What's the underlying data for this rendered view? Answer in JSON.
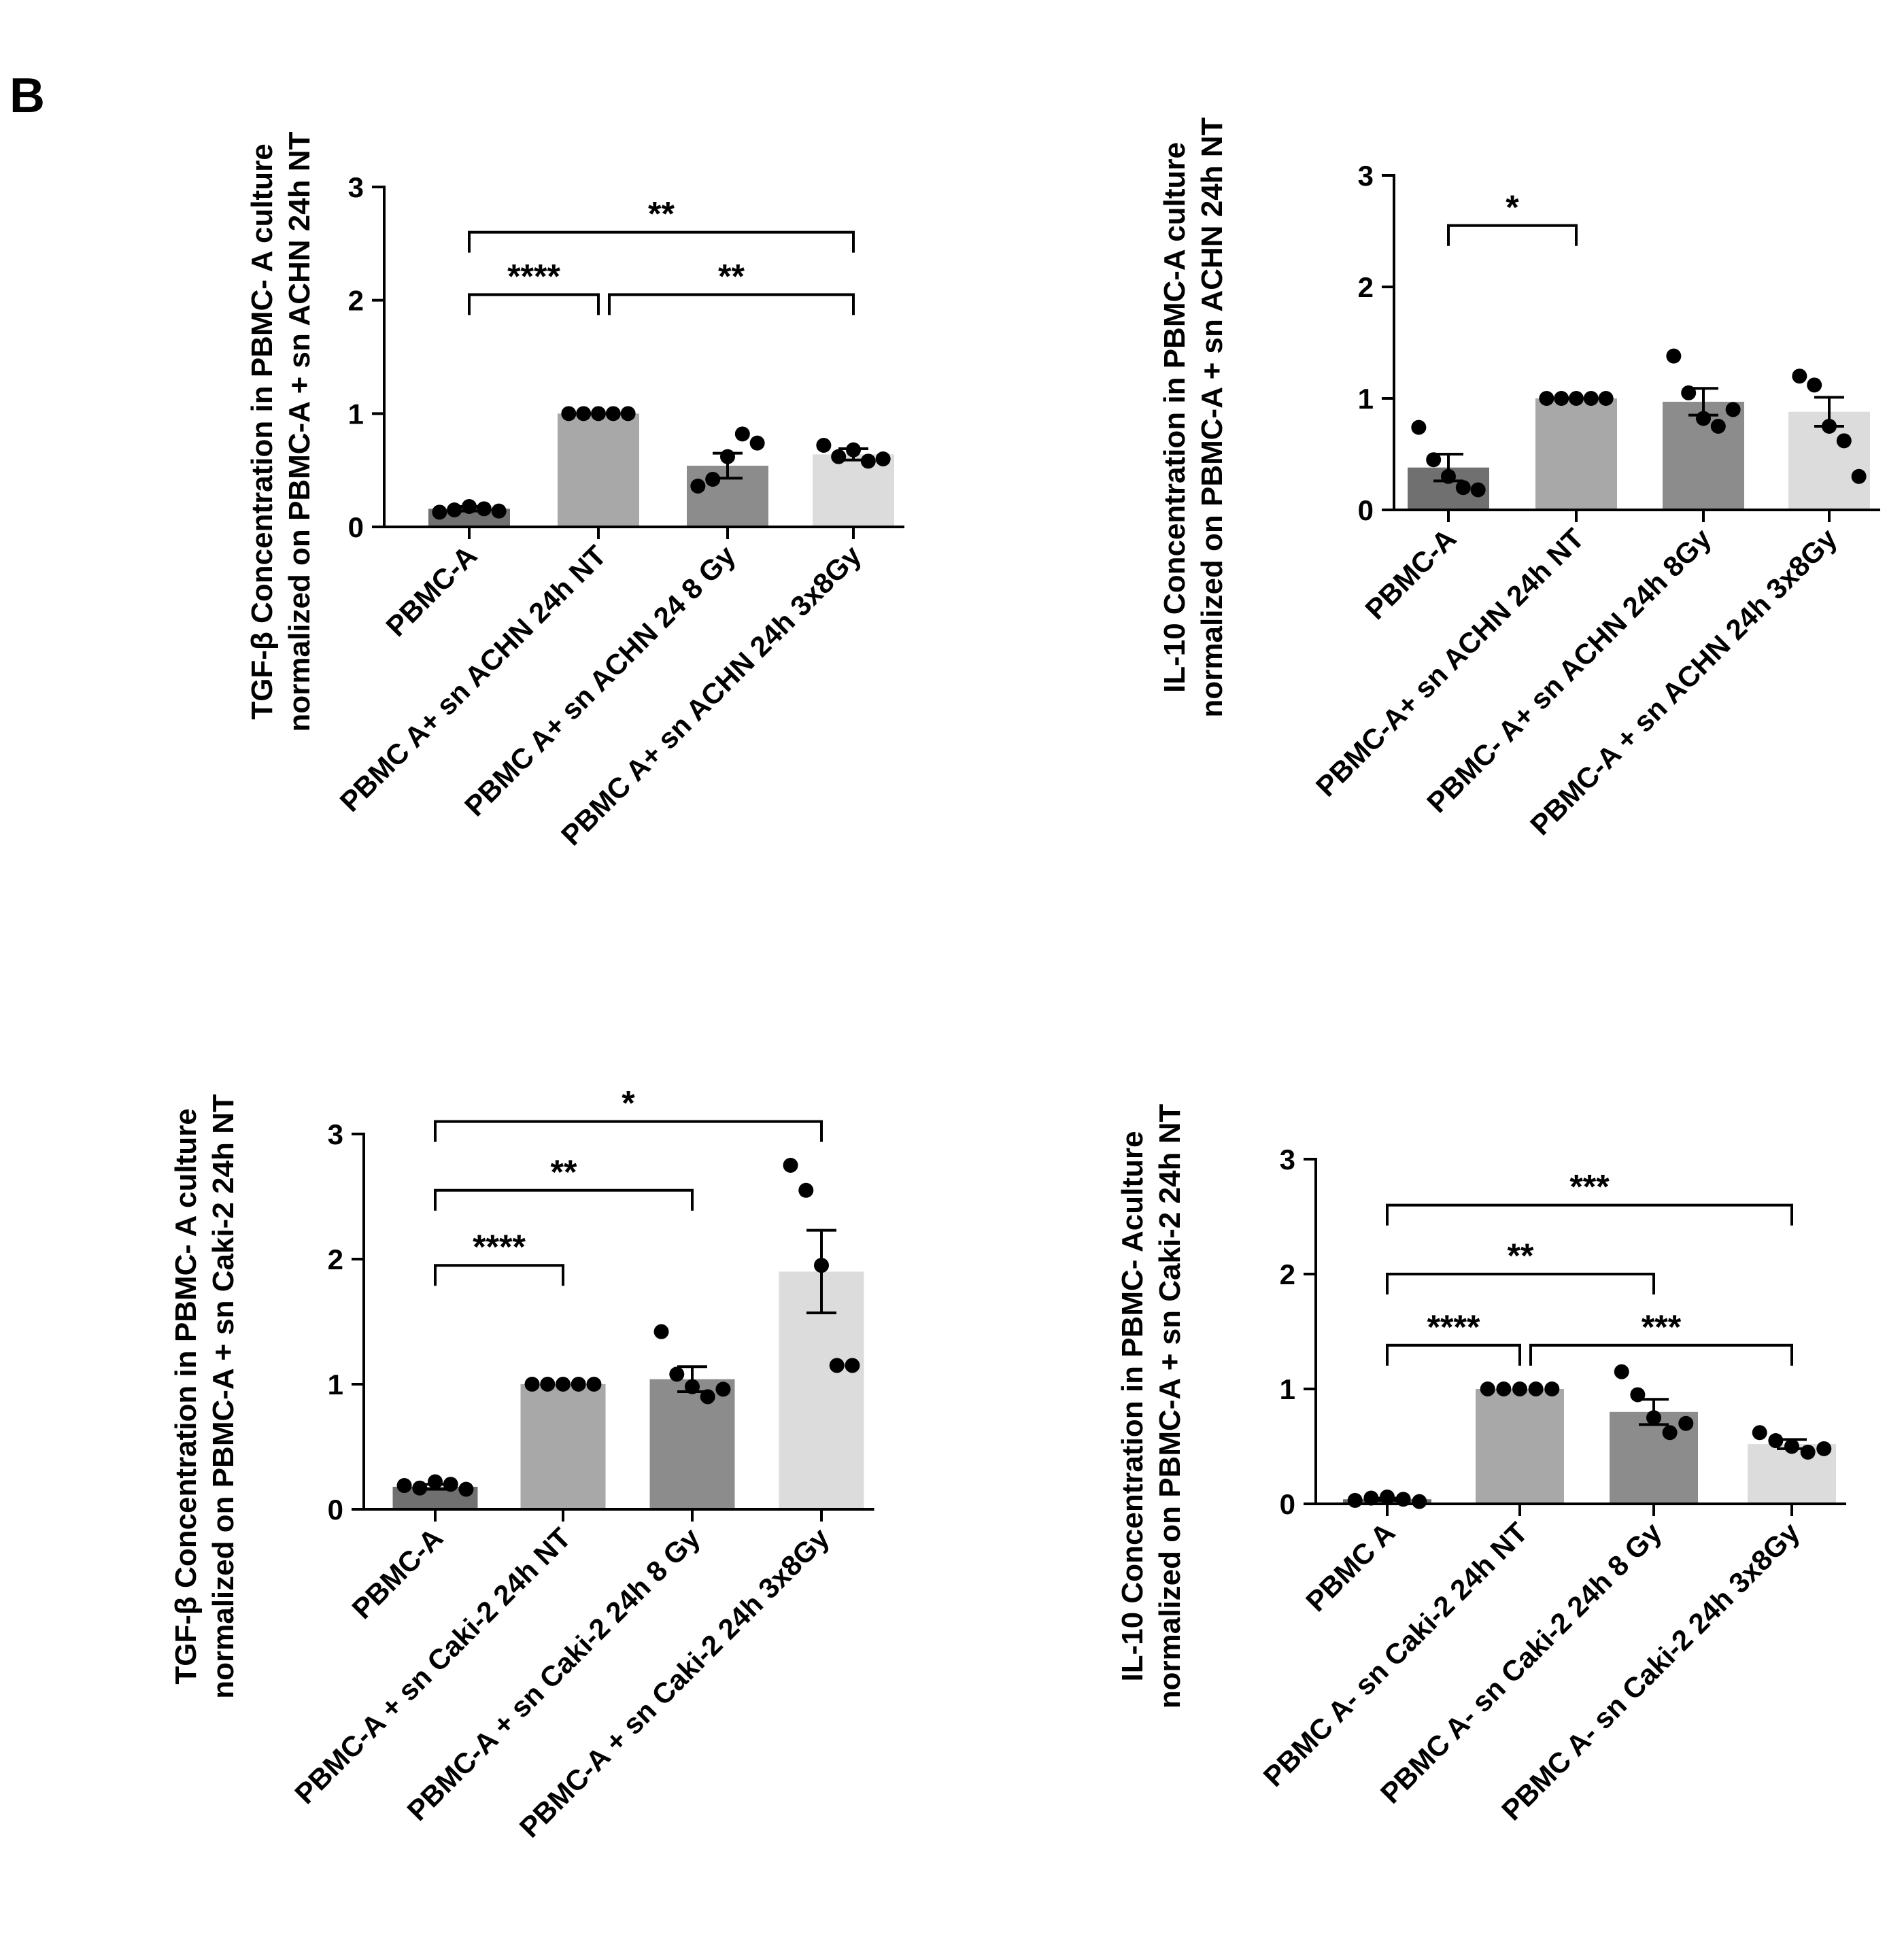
{
  "figure": {
    "panel_label": "B"
  },
  "chart_data": [
    {
      "type": "bar",
      "title": "",
      "xlabel": "",
      "ylabel": [
        "TGF-β Concentration in PBMC- A culture",
        "normalized on PBMC-A + sn ACHN 24h NT"
      ],
      "ylim": [
        0,
        3
      ],
      "yticks": [
        0,
        1,
        2,
        3
      ],
      "categories": [
        "PBMC-A",
        "PBMC A+ sn ACHN 24h NT",
        "PBMC A+ sn ACHN 24 8 Gy",
        "PBMC A+ sn ACHN 24h 3x8Gy"
      ],
      "values": [
        0.16,
        1.0,
        0.54,
        0.64
      ],
      "sem": [
        0.02,
        0,
        0.11,
        0.05
      ],
      "points": [
        [
          0.13,
          0.15,
          0.18,
          0.16,
          0.14
        ],
        [
          1.0,
          1.0,
          1.0,
          1.0,
          1.0
        ],
        [
          0.36,
          0.42,
          0.62,
          0.82,
          0.74
        ],
        [
          0.72,
          0.62,
          0.68,
          0.58,
          0.6
        ]
      ],
      "colors": [
        "#707070",
        "#a8a8a8",
        "#8c8c8c",
        "#dcdcdc"
      ],
      "significance": [
        {
          "from": 0,
          "to": 3,
          "label": "**",
          "level": 2.6
        },
        {
          "from": 0,
          "to": 1,
          "label": "****",
          "level": 2.05
        },
        {
          "from": 1,
          "to": 3,
          "label": "**",
          "level": 2.05
        }
      ]
    },
    {
      "type": "bar",
      "title": "",
      "xlabel": "",
      "ylabel": [
        "IL-10 Concentration in PBMC-A  culture",
        "normalized on PBMC-A + sn ACHN 24h NT"
      ],
      "ylim": [
        0,
        3
      ],
      "yticks": [
        0,
        1,
        2,
        3
      ],
      "categories": [
        "PBMC-A",
        "PBMC-A+ sn  ACHN 24h NT",
        "PBMC- A+ sn ACHN 24h 8Gy",
        "PBMC-A + sn ACHN 24h 3x8Gy"
      ],
      "values": [
        0.38,
        1.0,
        0.97,
        0.88
      ],
      "sem": [
        0.12,
        0,
        0.12,
        0.13
      ],
      "points": [
        [
          0.74,
          0.45,
          0.3,
          0.2,
          0.18
        ],
        [
          1.0,
          1.0,
          1.0,
          1.0,
          1.0
        ],
        [
          1.38,
          1.05,
          0.82,
          0.75,
          0.9
        ],
        [
          1.2,
          1.12,
          0.75,
          0.62,
          0.3
        ]
      ],
      "colors": [
        "#707070",
        "#a8a8a8",
        "#8c8c8c",
        "#dcdcdc"
      ],
      "significance": [
        {
          "from": 0,
          "to": 1,
          "label": "*",
          "level": 2.55
        }
      ]
    },
    {
      "type": "bar",
      "title": "",
      "xlabel": "",
      "ylabel": [
        "TGF-β Concentration in PBMC- A culture",
        "normalized on PBMC-A + sn Caki-2 24h NT"
      ],
      "ylim": [
        0,
        3
      ],
      "yticks": [
        0,
        1,
        2,
        3
      ],
      "categories": [
        "PBMC-A",
        "PBMC-A + sn Caki-2 24h NT",
        "PBMC-A + sn Caki-2 24h 8 Gy",
        "PBMC-A + sn Caki-2  24h 3x8Gy"
      ],
      "values": [
        0.18,
        1.0,
        1.04,
        1.9
      ],
      "sem": [
        0.02,
        0,
        0.1,
        0.33
      ],
      "points": [
        [
          0.19,
          0.17,
          0.22,
          0.2,
          0.16
        ],
        [
          1.0,
          1.0,
          1.0,
          1.0,
          1.0
        ],
        [
          1.42,
          1.08,
          0.98,
          0.9,
          0.96
        ],
        [
          2.75,
          2.55,
          1.95,
          1.15,
          1.15
        ]
      ],
      "colors": [
        "#707070",
        "#a8a8a8",
        "#8c8c8c",
        "#dcdcdc"
      ],
      "significance": [
        {
          "from": 0,
          "to": 3,
          "label": "*",
          "level": 3.1
        },
        {
          "from": 0,
          "to": 2,
          "label": "**",
          "level": 2.55
        },
        {
          "from": 0,
          "to": 1,
          "label": "****",
          "level": 1.95
        }
      ]
    },
    {
      "type": "bar",
      "title": "",
      "xlabel": "",
      "ylabel": [
        "IL-10 Concentration in PBMC- Aculture",
        "normalized on PBMC-A + sn Caki-2 24h NT"
      ],
      "ylim": [
        0,
        3
      ],
      "yticks": [
        0,
        1,
        2,
        3
      ],
      "categories": [
        "PBMC A",
        "PBMC A- sn Caki-2 24h NT",
        "PBMC A- sn Caki-2 24h 8 Gy",
        "PBMC A- sn Caki-2 24h 3x8Gy"
      ],
      "values": [
        0.04,
        1.0,
        0.8,
        0.52
      ],
      "sem": [
        0.01,
        0,
        0.11,
        0.04
      ],
      "points": [
        [
          0.03,
          0.05,
          0.06,
          0.04,
          0.02
        ],
        [
          1.0,
          1.0,
          1.0,
          1.0,
          1.0
        ],
        [
          1.15,
          0.95,
          0.75,
          0.62,
          0.7
        ],
        [
          0.62,
          0.55,
          0.5,
          0.45,
          0.48
        ]
      ],
      "colors": [
        "#707070",
        "#a8a8a8",
        "#8c8c8c",
        "#dcdcdc"
      ],
      "significance": [
        {
          "from": 0,
          "to": 3,
          "label": "***",
          "level": 2.6
        },
        {
          "from": 0,
          "to": 2,
          "label": "**",
          "level": 2.0
        },
        {
          "from": 0,
          "to": 1,
          "label": "****",
          "level": 1.38
        },
        {
          "from": 1,
          "to": 3,
          "label": "***",
          "level": 1.38
        }
      ]
    }
  ]
}
